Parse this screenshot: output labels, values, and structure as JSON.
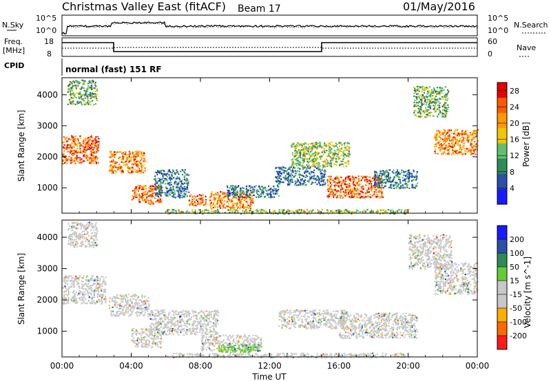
{
  "header": {
    "station": "Christmas Valley East (fitACF)",
    "beam": "Beam 17",
    "date": "01/May/2016"
  },
  "status_panels": {
    "nsky_label": "N.Sky",
    "nsky_ticks": [
      "10^5",
      "10^0"
    ],
    "nsearch_label": "N.Search",
    "nsearch_ticks": [
      "10^5",
      "10^0"
    ],
    "freq_label_1": "Freq.",
    "freq_label_2": "[MHz]",
    "freq_ticks": [
      "18",
      "8"
    ],
    "nave_label": "Nave",
    "nave_ticks": [
      "60",
      "0"
    ],
    "cpid_label": "CPID",
    "cpid_value": "normal (fast) 151 RF"
  },
  "colors": {
    "power_scale": [
      "#1a1aff",
      "#2e4fa8",
      "#2e8b57",
      "#5fbf6f",
      "#f0c800",
      "#ff9900",
      "#ff5a00",
      "#e60000"
    ],
    "velocity_scale": [
      "#ff1a1a",
      "#ff6a00",
      "#ffae00",
      "#c8c8c8",
      "#c8c8c8",
      "#66cc33",
      "#2e8b57",
      "#2e4fa8",
      "#1a1aff"
    ]
  },
  "chart_data": [
    {
      "type": "heatmap",
      "title": "",
      "xlabel": "",
      "ylabel": "Slant Range [km]",
      "x_ticks": [
        "00:00",
        "04:00",
        "08:00",
        "12:00",
        "16:00",
        "20:00",
        "00:00"
      ],
      "y_ticks": [
        "1000",
        "2000",
        "3000",
        "4000"
      ],
      "xlim_hours": [
        0,
        24
      ],
      "ylim_km": [
        180,
        4550
      ],
      "colorbar": {
        "label": "Power [dB]",
        "ticks": [
          "4",
          "8",
          "12",
          "16",
          "20",
          "24",
          "28"
        ],
        "range": [
          0,
          30
        ]
      },
      "scatter_regions": [
        {
          "t0": 0.0,
          "t1": 2.1,
          "r0": 1800,
          "r1": 2700,
          "value": 24
        },
        {
          "t0": 0.3,
          "t1": 2.0,
          "r0": 3700,
          "r1": 4500,
          "value": 12
        },
        {
          "t0": 2.7,
          "t1": 4.8,
          "r0": 1500,
          "r1": 2200,
          "value": 22
        },
        {
          "t0": 4.0,
          "t1": 5.7,
          "r0": 500,
          "r1": 1100,
          "value": 24
        },
        {
          "t0": 5.3,
          "t1": 7.3,
          "r0": 700,
          "r1": 1600,
          "value": 8
        },
        {
          "t0": 7.3,
          "t1": 8.3,
          "r0": 450,
          "r1": 800,
          "value": 24
        },
        {
          "t0": 8.5,
          "t1": 11.0,
          "r0": 350,
          "r1": 900,
          "value": 22
        },
        {
          "t0": 9.5,
          "t1": 12.5,
          "r0": 700,
          "r1": 1100,
          "value": 8
        },
        {
          "t0": 12.3,
          "t1": 15.2,
          "r0": 1100,
          "r1": 1700,
          "value": 8
        },
        {
          "t0": 13.2,
          "t1": 16.6,
          "r0": 1700,
          "r1": 2500,
          "value": 14
        },
        {
          "t0": 15.3,
          "t1": 18.5,
          "r0": 700,
          "r1": 1400,
          "value": 24
        },
        {
          "t0": 18.0,
          "t1": 20.5,
          "r0": 1000,
          "r1": 1600,
          "value": 8
        },
        {
          "t0": 20.3,
          "t1": 22.3,
          "r0": 3300,
          "r1": 4300,
          "value": 12
        },
        {
          "t0": 21.5,
          "t1": 24.0,
          "r0": 2100,
          "r1": 2900,
          "value": 22
        },
        {
          "t0": 6.0,
          "t1": 20.0,
          "r0": 180,
          "r1": 320,
          "value": 14
        }
      ]
    },
    {
      "type": "heatmap",
      "title": "",
      "xlabel": "Time UT",
      "ylabel": "Slant Range [km]",
      "x_ticks": [
        "00:00",
        "04:00",
        "08:00",
        "12:00",
        "16:00",
        "20:00",
        "00:00"
      ],
      "y_ticks": [
        "1000",
        "2000",
        "3000",
        "4000"
      ],
      "xlim_hours": [
        0,
        24
      ],
      "ylim_km": [
        180,
        4550
      ],
      "colorbar": {
        "label": "Velocity [m s^-1]",
        "ticks": [
          "200",
          "100",
          "50",
          "15",
          "-15",
          "-50",
          "-100",
          "-200"
        ],
        "range": [
          -250,
          250
        ]
      },
      "scatter_regions": [
        {
          "t0": 0.0,
          "t1": 2.5,
          "r0": 1900,
          "r1": 2800,
          "value": 0
        },
        {
          "t0": 0.3,
          "t1": 2.0,
          "r0": 3700,
          "r1": 4500,
          "value": 0
        },
        {
          "t0": 2.7,
          "t1": 5.0,
          "r0": 1500,
          "r1": 2200,
          "value": 0
        },
        {
          "t0": 5.0,
          "t1": 9.0,
          "r0": 900,
          "r1": 1700,
          "value": 0
        },
        {
          "t0": 4.0,
          "t1": 5.7,
          "r0": 500,
          "r1": 1100,
          "value": 0
        },
        {
          "t0": 8.0,
          "t1": 11.5,
          "r0": 400,
          "r1": 900,
          "value": 0
        },
        {
          "t0": 12.5,
          "t1": 16.5,
          "r0": 1100,
          "r1": 1700,
          "value": 0
        },
        {
          "t0": 16.0,
          "t1": 20.5,
          "r0": 800,
          "r1": 1600,
          "value": 0
        },
        {
          "t0": 20.0,
          "t1": 22.5,
          "r0": 3000,
          "r1": 4100,
          "value": 0
        },
        {
          "t0": 21.5,
          "t1": 24.0,
          "r0": 2200,
          "r1": 3200,
          "value": 0
        },
        {
          "t0": 9.0,
          "t1": 11.5,
          "r0": 350,
          "r1": 600,
          "value": 60
        },
        {
          "t0": 6.0,
          "t1": 20.0,
          "r0": 180,
          "r1": 320,
          "value": -60
        }
      ]
    }
  ]
}
